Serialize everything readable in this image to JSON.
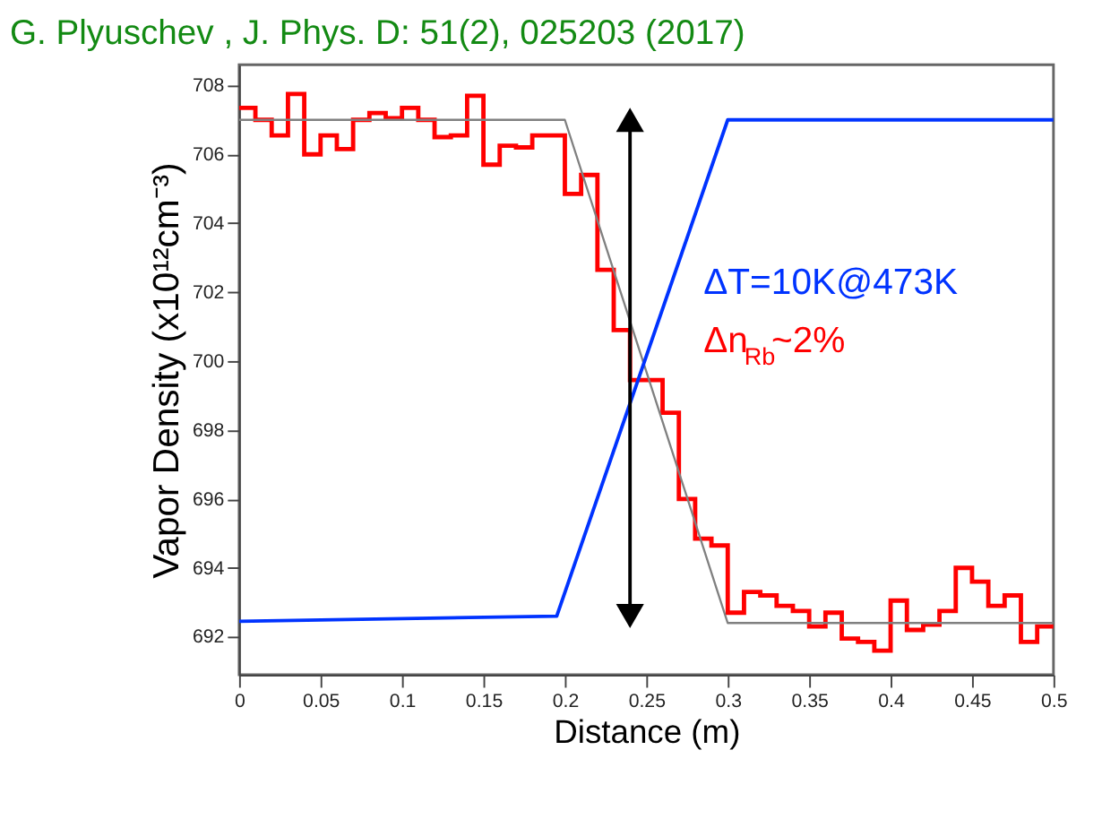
{
  "chart_data": {
    "type": "line",
    "title": "G. Plyuschev , J. Phys. D: 51(2), 025203 (2017)",
    "xlabel": "Distance (m)",
    "ylabel": "Vapor Density (x10¹²cm⁻³)",
    "xlim": [
      0,
      0.5
    ],
    "xticks": [
      0,
      0.05,
      0.1,
      0.15,
      0.2,
      0.25,
      0.3,
      0.35,
      0.4,
      0.45,
      0.5
    ],
    "ylim": [
      690.9,
      708.6
    ],
    "yticks": [
      692,
      694,
      696,
      698,
      700,
      702,
      704,
      706,
      708
    ],
    "grid": false,
    "annotations": [
      "ΔT=10K@473K",
      "Δn$_{Rb}$~2%"
    ],
    "series": [
      {
        "type": "histogram",
        "color": "#ff0000",
        "bins": [
          0,
          0.01,
          0.02,
          0.03,
          0.04,
          0.05,
          0.06,
          0.07,
          0.08,
          0.09,
          0.1,
          0.11,
          0.12,
          0.13,
          0.14,
          0.15,
          0.16,
          0.17,
          0.18,
          0.19,
          0.2,
          0.21,
          0.22,
          0.23,
          0.24,
          0.25,
          0.26,
          0.27,
          0.28,
          0.29,
          0.3,
          0.31,
          0.32,
          0.33,
          0.34,
          0.35,
          0.36,
          0.37,
          0.38,
          0.39,
          0.4,
          0.41,
          0.42,
          0.43,
          0.44,
          0.45,
          0.46,
          0.47,
          0.48,
          0.49,
          0.5
        ],
        "values": [
          707.35,
          707.0,
          706.55,
          707.75,
          706.0,
          706.55,
          706.15,
          707.0,
          707.2,
          707.05,
          707.35,
          707.0,
          706.5,
          706.55,
          707.7,
          705.7,
          706.25,
          706.2,
          706.55,
          706.55,
          704.85,
          705.4,
          702.65,
          700.9,
          699.45,
          699.45,
          698.5,
          696.0,
          694.85,
          694.65,
          692.7,
          693.3,
          693.2,
          692.9,
          692.75,
          692.3,
          692.7,
          691.95,
          691.85,
          691.6,
          693.05,
          692.2,
          692.35,
          692.75,
          694.0,
          693.6,
          692.9,
          693.2,
          691.85,
          692.3
        ]
      },
      {
        "color": "#808080",
        "x": [
          0,
          0.2,
          0.3,
          0.5
        ],
        "values": [
          707.0,
          707.0,
          692.4,
          692.4
        ]
      },
      {
        "color": "#0033ff",
        "x": [
          0,
          0.195,
          0.3,
          0.5
        ],
        "values": [
          692.45,
          692.6,
          707.0,
          707.0
        ]
      },
      {
        "color": "#000000",
        "marker": "triangle",
        "x": [
          0.24,
          0.24
        ],
        "values": [
          692.6,
          707.0
        ]
      }
    ]
  }
}
